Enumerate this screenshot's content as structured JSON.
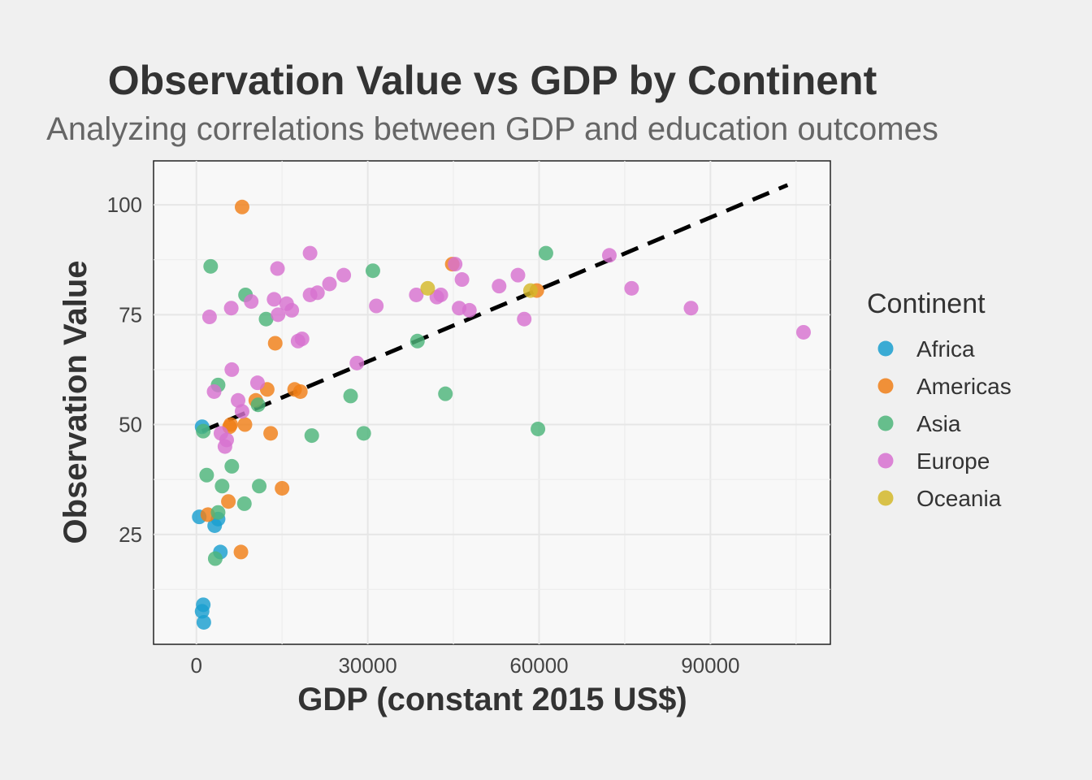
{
  "chart_data": {
    "type": "scatter",
    "title": "Observation Value vs GDP by Continent",
    "subtitle": "Analyzing correlations between GDP and education outcomes",
    "xlabel": "GDP (constant 2015 US$)",
    "ylabel": "Observation Value",
    "xlim": [
      -7500,
      111000
    ],
    "ylim": [
      0,
      110
    ],
    "x_ticks": [
      0,
      30000,
      60000,
      90000
    ],
    "x_tick_labels": [
      "0",
      "30000",
      "60000",
      "90000"
    ],
    "y_ticks": [
      25,
      50,
      75,
      100
    ],
    "y_tick_labels": [
      "25",
      "50",
      "75",
      "100"
    ],
    "grid": true,
    "legend": {
      "title": "Continent",
      "placement": "right"
    },
    "trendline": {
      "style": "dashed",
      "color": "#000000",
      "x": [
        1000,
        103500
      ],
      "y": [
        48.5,
        104.5
      ]
    },
    "series": [
      {
        "name": "Africa",
        "color": "#1a9fcf",
        "points": [
          [
            1000,
            49.5
          ],
          [
            500,
            29
          ],
          [
            3200,
            27
          ],
          [
            3800,
            28.5
          ],
          [
            4200,
            21
          ],
          [
            1200,
            9
          ],
          [
            1000,
            7.5
          ],
          [
            1300,
            5
          ]
        ]
      },
      {
        "name": "Americas",
        "color": "#f07f17",
        "points": [
          [
            8000,
            99.5
          ],
          [
            44800,
            86.5
          ],
          [
            13800,
            68.5
          ],
          [
            17200,
            58
          ],
          [
            18200,
            57.5
          ],
          [
            12400,
            58
          ],
          [
            10400,
            55.5
          ],
          [
            8500,
            50
          ],
          [
            6000,
            50
          ],
          [
            5800,
            49.5
          ],
          [
            13000,
            48
          ],
          [
            15000,
            35.5
          ],
          [
            5600,
            32.5
          ],
          [
            2000,
            29.5
          ],
          [
            7800,
            21
          ],
          [
            59600,
            80.5
          ]
        ]
      },
      {
        "name": "Asia",
        "color": "#4db57a",
        "points": [
          [
            2500,
            86
          ],
          [
            8600,
            79.5
          ],
          [
            12200,
            74
          ],
          [
            30900,
            85
          ],
          [
            61200,
            89
          ],
          [
            38700,
            69
          ],
          [
            3800,
            59
          ],
          [
            27000,
            56.5
          ],
          [
            43600,
            57
          ],
          [
            10800,
            54.5
          ],
          [
            1200,
            48.5
          ],
          [
            20200,
            47.5
          ],
          [
            29300,
            48
          ],
          [
            59800,
            49
          ],
          [
            1800,
            38.5
          ],
          [
            6200,
            40.5
          ],
          [
            4500,
            36
          ],
          [
            11000,
            36
          ],
          [
            3800,
            30
          ],
          [
            8400,
            32
          ],
          [
            3300,
            19.5
          ]
        ]
      },
      {
        "name": "Europe",
        "color": "#d771d0",
        "points": [
          [
            19900,
            89
          ],
          [
            14200,
            85.5
          ],
          [
            25800,
            84
          ],
          [
            23300,
            82
          ],
          [
            21200,
            80
          ],
          [
            19900,
            79.5
          ],
          [
            13600,
            78.5
          ],
          [
            15800,
            77.5
          ],
          [
            9600,
            78
          ],
          [
            6100,
            76.5
          ],
          [
            16700,
            76
          ],
          [
            14300,
            75
          ],
          [
            2300,
            74.5
          ],
          [
            31500,
            77
          ],
          [
            38500,
            79.5
          ],
          [
            42100,
            79
          ],
          [
            42800,
            79.5
          ],
          [
            45300,
            86.5
          ],
          [
            46500,
            83
          ],
          [
            53000,
            81.5
          ],
          [
            56300,
            84
          ],
          [
            46000,
            76.5
          ],
          [
            47800,
            76
          ],
          [
            57400,
            74
          ],
          [
            72300,
            88.5
          ],
          [
            76200,
            81
          ],
          [
            86600,
            76.5
          ],
          [
            106300,
            71
          ],
          [
            17800,
            69
          ],
          [
            18500,
            69.5
          ],
          [
            28100,
            64
          ],
          [
            6200,
            62.5
          ],
          [
            10700,
            59.5
          ],
          [
            3100,
            57.5
          ],
          [
            7300,
            55.5
          ],
          [
            8000,
            53
          ],
          [
            4300,
            48
          ],
          [
            5300,
            46.5
          ],
          [
            5000,
            45
          ]
        ]
      },
      {
        "name": "Oceania",
        "color": "#d4b82a",
        "points": [
          [
            40500,
            81
          ],
          [
            58500,
            80.5
          ]
        ]
      }
    ]
  }
}
